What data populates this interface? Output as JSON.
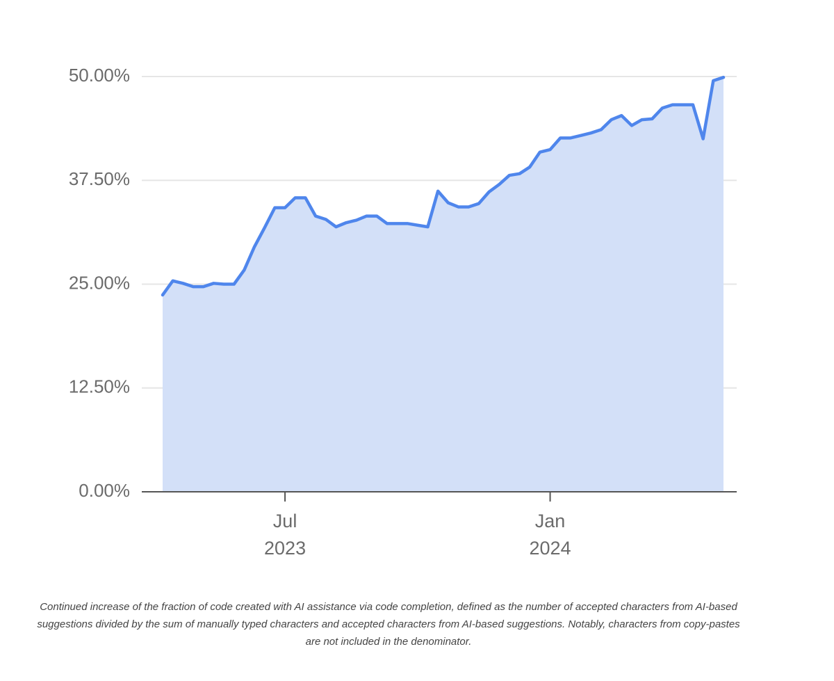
{
  "chart_data": {
    "type": "area",
    "categories": [
      null,
      null,
      null,
      null,
      null,
      null,
      null,
      null,
      null,
      null,
      null,
      null,
      "Jul\n2023",
      null,
      null,
      null,
      null,
      null,
      null,
      null,
      null,
      null,
      null,
      null,
      null,
      null,
      null,
      null,
      null,
      null,
      null,
      null,
      null,
      null,
      null,
      null,
      null,
      null,
      "Jan\n2024",
      null,
      null,
      null,
      null,
      null,
      null,
      null,
      null,
      null,
      null,
      null,
      null,
      null,
      null,
      null,
      null,
      null
    ],
    "series": [
      {
        "color": "#4f86ec",
        "fill": "#d3e0f8",
        "values": [
          23.7,
          25.4,
          25.1,
          24.7,
          24.7,
          25.1,
          25.0,
          25.0,
          26.7,
          29.5,
          31.8,
          34.2,
          34.2,
          35.4,
          35.4,
          33.2,
          32.8,
          31.9,
          32.4,
          32.7,
          33.2,
          33.2,
          32.3,
          32.3,
          32.3,
          32.1,
          31.9,
          36.2,
          34.8,
          34.3,
          34.3,
          34.7,
          36.1,
          37.0,
          38.1,
          38.3,
          39.1,
          40.9,
          41.2,
          42.6,
          42.6,
          42.9,
          43.2,
          43.6,
          44.8,
          45.3,
          44.1,
          44.8,
          44.9,
          46.2,
          46.6,
          46.6,
          46.6,
          42.5,
          49.5,
          49.9
        ]
      }
    ],
    "ylim": [
      0,
      50
    ],
    "yticks": [
      {
        "value": 0,
        "label": "0.00%"
      },
      {
        "value": 12.5,
        "label": "12.50%"
      },
      {
        "value": 25,
        "label": "25.00%"
      },
      {
        "value": 37.5,
        "label": "37.50%"
      },
      {
        "value": 50,
        "label": "50.00%"
      }
    ],
    "grid": true,
    "caption": "Continued increase of the fraction of code created with AI assistance via code completion, defined as the number of accepted characters from AI-based suggestions divided by the sum of manually typed characters and accepted characters from AI-based suggestions. Notably, characters from copy-pastes are not included in the denominator."
  }
}
